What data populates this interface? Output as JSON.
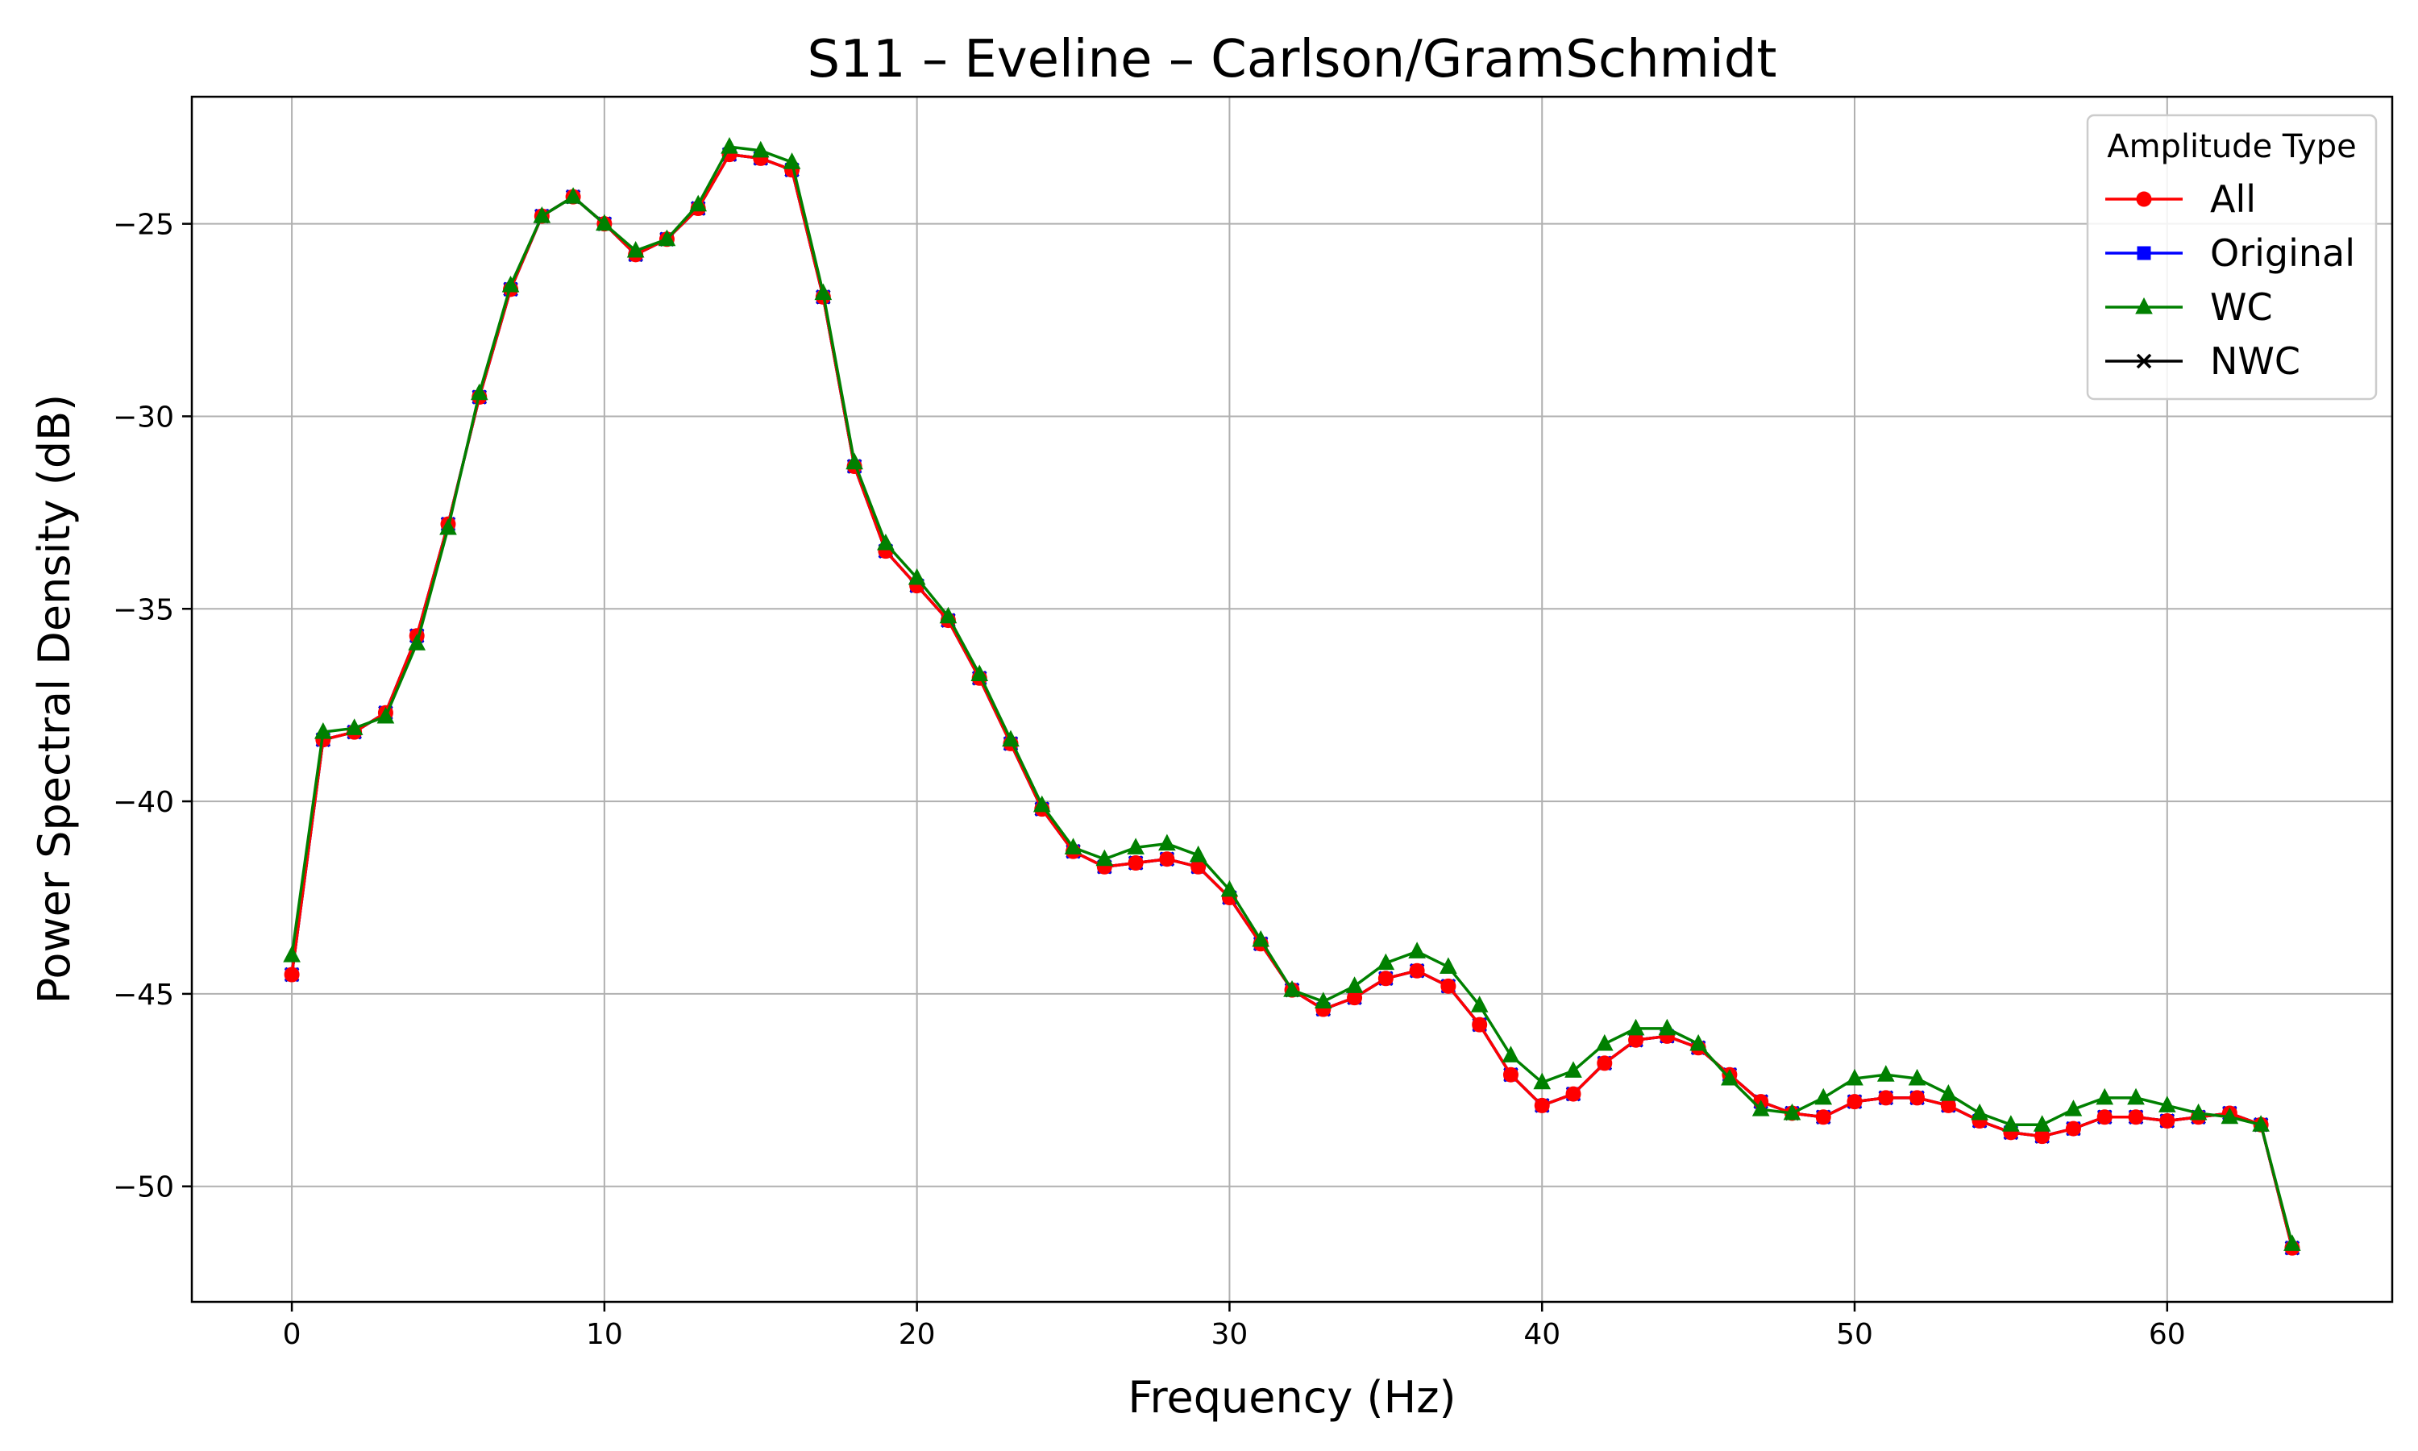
{
  "chart_data": {
    "type": "line",
    "title": "S11 – Eveline – Carlson/GramSchmidt",
    "xlabel": "Frequency (Hz)",
    "ylabel": "Power Spectral Density (dB)",
    "xlim": [
      -3.2,
      67.2
    ],
    "ylim": [
      -53.0,
      -21.7
    ],
    "grid": true,
    "x_ticks": [
      0,
      10,
      20,
      30,
      40,
      50,
      60
    ],
    "x_tick_labels": [
      "0",
      "10",
      "20",
      "30",
      "40",
      "50",
      "60"
    ],
    "y_ticks": [
      -25,
      -30,
      -35,
      -40,
      -45,
      -50
    ],
    "y_tick_labels": [
      "−25",
      "−30",
      "−35",
      "−40",
      "−45",
      "−50"
    ],
    "legend": {
      "title": "Amplitude Type",
      "position": "top-right"
    },
    "x": [
      0,
      1,
      2,
      3,
      4,
      5,
      6,
      7,
      8,
      9,
      10,
      11,
      12,
      13,
      14,
      15,
      16,
      17,
      18,
      19,
      20,
      21,
      22,
      23,
      24,
      25,
      26,
      27,
      28,
      29,
      30,
      31,
      32,
      33,
      34,
      35,
      36,
      37,
      38,
      39,
      40,
      41,
      42,
      43,
      44,
      45,
      46,
      47,
      48,
      49,
      50,
      51,
      52,
      53,
      54,
      55,
      56,
      57,
      58,
      59,
      60,
      61,
      62,
      63,
      64
    ],
    "series": [
      {
        "name": "All",
        "color": "#ff0000",
        "marker": "circle",
        "values": [
          -44.5,
          -38.4,
          -38.2,
          -37.7,
          -35.7,
          -32.8,
          -29.5,
          -26.7,
          -24.8,
          -24.3,
          -25.0,
          -25.8,
          -25.4,
          -24.6,
          -23.2,
          -23.3,
          -23.6,
          -26.9,
          -31.3,
          -33.5,
          -34.4,
          -35.3,
          -36.8,
          -38.5,
          -40.2,
          -41.3,
          -41.7,
          -41.6,
          -41.5,
          -41.7,
          -42.5,
          -43.7,
          -44.9,
          -45.4,
          -45.1,
          -44.6,
          -44.4,
          -44.8,
          -45.8,
          -47.1,
          -47.9,
          -47.6,
          -46.8,
          -46.2,
          -46.1,
          -46.4,
          -47.1,
          -47.8,
          -48.1,
          -48.2,
          -47.8,
          -47.7,
          -47.7,
          -47.9,
          -48.3,
          -48.6,
          -48.7,
          -48.5,
          -48.2,
          -48.2,
          -48.3,
          -48.2,
          -48.1,
          -48.4,
          -51.6
        ]
      },
      {
        "name": "Original",
        "color": "#0000ff",
        "marker": "square",
        "values": [
          -44.5,
          -38.4,
          -38.2,
          -37.7,
          -35.7,
          -32.8,
          -29.5,
          -26.7,
          -24.8,
          -24.3,
          -25.0,
          -25.8,
          -25.4,
          -24.6,
          -23.2,
          -23.3,
          -23.6,
          -26.9,
          -31.3,
          -33.5,
          -34.4,
          -35.3,
          -36.8,
          -38.5,
          -40.2,
          -41.3,
          -41.7,
          -41.6,
          -41.5,
          -41.7,
          -42.5,
          -43.7,
          -44.9,
          -45.4,
          -45.1,
          -44.6,
          -44.4,
          -44.8,
          -45.8,
          -47.1,
          -47.9,
          -47.6,
          -46.8,
          -46.2,
          -46.1,
          -46.4,
          -47.1,
          -47.8,
          -48.1,
          -48.2,
          -47.8,
          -47.7,
          -47.7,
          -47.9,
          -48.3,
          -48.6,
          -48.7,
          -48.5,
          -48.2,
          -48.2,
          -48.3,
          -48.2,
          -48.1,
          -48.4,
          -51.6
        ]
      },
      {
        "name": "WC",
        "color": "#008000",
        "marker": "triangle",
        "values": [
          -44.0,
          -38.2,
          -38.1,
          -37.8,
          -35.9,
          -32.9,
          -29.4,
          -26.6,
          -24.8,
          -24.3,
          -25.0,
          -25.7,
          -25.4,
          -24.5,
          -23.0,
          -23.1,
          -23.4,
          -26.8,
          -31.2,
          -33.3,
          -34.2,
          -35.2,
          -36.7,
          -38.4,
          -40.1,
          -41.2,
          -41.5,
          -41.2,
          -41.1,
          -41.4,
          -42.3,
          -43.6,
          -44.9,
          -45.2,
          -44.8,
          -44.2,
          -43.9,
          -44.3,
          -45.3,
          -46.6,
          -47.3,
          -47.0,
          -46.3,
          -45.9,
          -45.9,
          -46.3,
          -47.2,
          -48.0,
          -48.1,
          -47.7,
          -47.2,
          -47.1,
          -47.2,
          -47.6,
          -48.1,
          -48.4,
          -48.4,
          -48.0,
          -47.7,
          -47.7,
          -47.9,
          -48.1,
          -48.2,
          -48.4,
          -51.5
        ]
      },
      {
        "name": "NWC",
        "color": "#000000",
        "marker": "x",
        "values": [
          -44.5,
          -38.4,
          -38.2,
          -37.7,
          -35.7,
          -32.8,
          -29.5,
          -26.7,
          -24.8,
          -24.3,
          -25.0,
          -25.8,
          -25.4,
          -24.6,
          -23.2,
          -23.3,
          -23.6,
          -26.9,
          -31.3,
          -33.5,
          -34.4,
          -35.3,
          -36.8,
          -38.5,
          -40.2,
          -41.3,
          -41.7,
          -41.6,
          -41.5,
          -41.7,
          -42.5,
          -43.7,
          -44.9,
          -45.4,
          -45.1,
          -44.6,
          -44.4,
          -44.8,
          -45.8,
          -47.1,
          -47.9,
          -47.6,
          -46.8,
          -46.2,
          -46.1,
          -46.4,
          -47.1,
          -47.8,
          -48.1,
          -48.2,
          -47.8,
          -47.7,
          -47.7,
          -47.9,
          -48.3,
          -48.6,
          -48.7,
          -48.5,
          -48.2,
          -48.2,
          -48.3,
          -48.2,
          -48.1,
          -48.4,
          -51.6
        ]
      }
    ],
    "draw_order": [
      "NWC",
      "Original",
      "All",
      "WC"
    ]
  }
}
